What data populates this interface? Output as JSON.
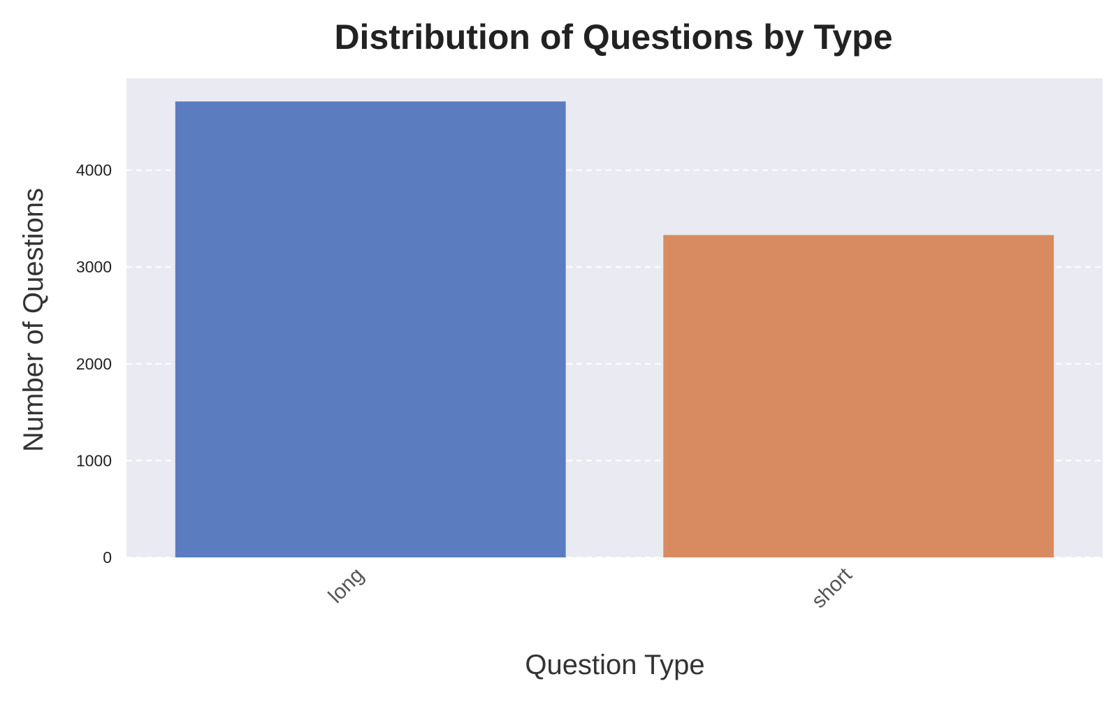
{
  "chart_data": {
    "type": "bar",
    "title": "Distribution of Questions by Type",
    "xlabel": "Question Type",
    "ylabel": "Number of Questions",
    "categories": [
      "long",
      "short"
    ],
    "values": [
      4710,
      3330
    ],
    "ylim": [
      0,
      4950
    ],
    "yticks": [
      0,
      1000,
      2000,
      3000,
      4000
    ],
    "grid": true,
    "grid_axis": "y",
    "grid_style": "dashed",
    "legend": "none",
    "colors": {
      "bars": [
        "#5b7cbe",
        "#d88a60"
      ],
      "plot_background": "#eaeaf2",
      "grid": "#ffffff"
    }
  }
}
